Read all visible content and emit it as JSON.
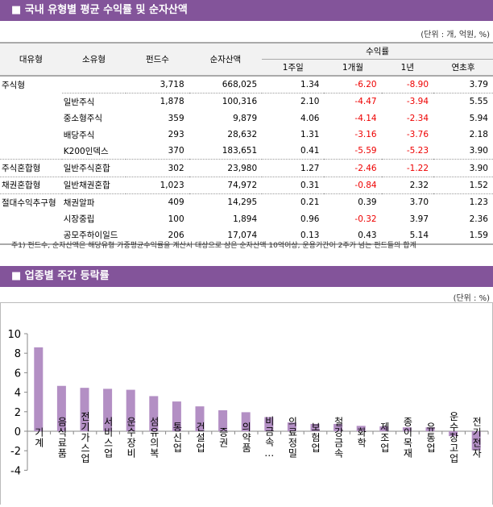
{
  "section1": {
    "title": "■ 국내 유형별 평균 수익률 및 순자산액",
    "unit": "(단위 : 개, 억원, %)"
  },
  "table": {
    "headers": {
      "major": "대유형",
      "minor": "소유형",
      "funds": "펀드수",
      "assets": "순자산액",
      "returns": "수익률",
      "w1": "1주일",
      "m1": "1개월",
      "y1": "1년",
      "ytd": "연초후"
    },
    "rows": [
      {
        "major": "주식형",
        "minor": "",
        "funds": "3,718",
        "assets": "668,025",
        "w1": "1.34",
        "m1": "-6.20",
        "y1": "-8.90",
        "ytd": "3.79"
      },
      {
        "major": "",
        "minor": "일반주식",
        "funds": "1,878",
        "assets": "100,316",
        "w1": "2.10",
        "m1": "-4.47",
        "y1": "-3.94",
        "ytd": "5.55"
      },
      {
        "major": "",
        "minor": "중소형주식",
        "funds": "359",
        "assets": "9,879",
        "w1": "4.06",
        "m1": "-4.14",
        "y1": "-2.34",
        "ytd": "5.94"
      },
      {
        "major": "",
        "minor": "배당주식",
        "funds": "293",
        "assets": "28,632",
        "w1": "1.31",
        "m1": "-3.16",
        "y1": "-3.76",
        "ytd": "2.18"
      },
      {
        "major": "",
        "minor": "K200인덱스",
        "funds": "370",
        "assets": "183,651",
        "w1": "0.41",
        "m1": "-5.59",
        "y1": "-5.23",
        "ytd": "3.90"
      },
      {
        "major": "주식혼합형",
        "minor": "일반주식혼합",
        "funds": "302",
        "assets": "23,980",
        "w1": "1.27",
        "m1": "-2.46",
        "y1": "-1.22",
        "ytd": "3.90"
      },
      {
        "major": "채권혼합형",
        "minor": "일반채권혼합",
        "funds": "1,023",
        "assets": "74,972",
        "w1": "0.31",
        "m1": "-0.84",
        "y1": "2.32",
        "ytd": "1.52"
      },
      {
        "major": "절대수익추구형",
        "minor": "채권알파",
        "funds": "409",
        "assets": "14,295",
        "w1": "0.21",
        "m1": "0.39",
        "y1": "3.70",
        "ytd": "1.23"
      },
      {
        "major": "",
        "minor": "시장중립",
        "funds": "100",
        "assets": "1,894",
        "w1": "0.96",
        "m1": "-0.32",
        "y1": "3.97",
        "ytd": "2.36"
      },
      {
        "major": "",
        "minor": "공모주하이일드",
        "funds": "206",
        "assets": "17,074",
        "w1": "0.13",
        "m1": "0.43",
        "y1": "5.14",
        "ytd": "1.59"
      }
    ],
    "note": "주1) 펀드수, 순자산액은 해당유형 가중평균수익률을 계산시 대상으로 삼은 순자산액 10억이상, 운용기간이 2주가 넘는 펀드들의 합계"
  },
  "section2": {
    "title": "■ 업종별 주간 등락률",
    "unit": "(단위 : %)"
  },
  "colors": {
    "header": "#83549a",
    "bar": "#b38fc4",
    "negative": "#e00000"
  },
  "chart_data": {
    "type": "bar",
    "categories": [
      "기계",
      "음식료품",
      "전기가스업",
      "서비스업",
      "운수장비",
      "섬유의복",
      "통신업",
      "건설업",
      "증권",
      "의약품",
      "비금속…",
      "의료정밀",
      "보험업",
      "철강금속",
      "화학",
      "제조업",
      "종이목재",
      "유통업",
      "운수창고업",
      "전기전자"
    ],
    "values": [
      8.6,
      4.65,
      4.45,
      4.35,
      4.25,
      3.6,
      3.05,
      2.55,
      2.15,
      1.95,
      1.45,
      0.9,
      0.75,
      0.75,
      0.55,
      0.5,
      0.4,
      0.4,
      -0.5,
      -1.95
    ],
    "ylim": [
      -4,
      10
    ],
    "yticks": [
      "10",
      "8",
      "6",
      "4",
      "2",
      "0",
      "-2",
      "-4"
    ],
    "grid": false
  }
}
